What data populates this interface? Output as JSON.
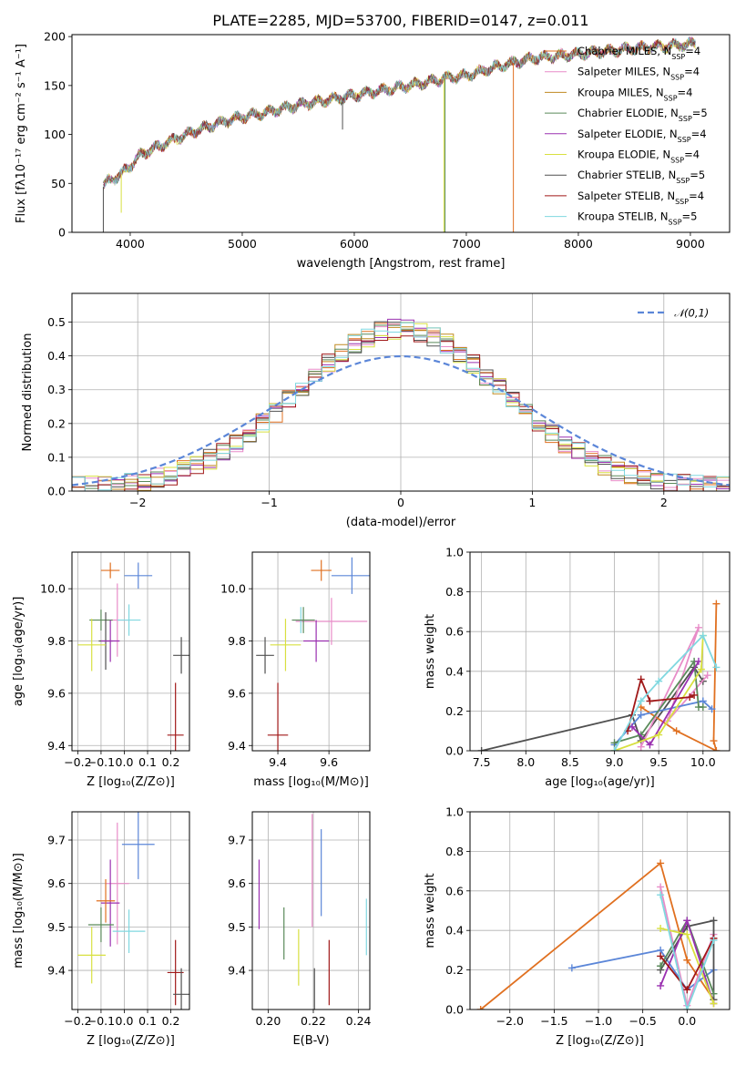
{
  "title": "PLATE=2285, MJD=53700, FIBERID=0147, z=0.011",
  "colors": {
    "Chabrier MILES": "#e07020",
    "Salpeter MILES": "#e88cc8",
    "Kroupa MILES": "#c08a20",
    "Chabrier ELODIE": "#5a8a5a",
    "Salpeter ELODIE": "#9a30b0",
    "Kroupa ELODIE": "#d8e040",
    "Chabrier STELIB": "#505050",
    "Salpeter STELIB": "#a01818",
    "Kroupa STELIB": "#80d8e0",
    "normal": "#5b86d8",
    "blue": "#5b86d8"
  },
  "legend_spectrum": [
    {
      "key": "Chabrier MILES",
      "label": "Chabrier MILES, N",
      "sub": "SSP",
      "n": "=4"
    },
    {
      "key": "Salpeter MILES",
      "label": "Salpeter MILES, N",
      "sub": "SSP",
      "n": "=4"
    },
    {
      "key": "Kroupa MILES",
      "label": "Kroupa MILES, N",
      "sub": "SSP",
      "n": "=4"
    },
    {
      "key": "Chabrier ELODIE",
      "label": "Chabrier ELODIE, N",
      "sub": "SSP",
      "n": "=5"
    },
    {
      "key": "Salpeter ELODIE",
      "label": "Salpeter ELODIE, N",
      "sub": "SSP",
      "n": "=4"
    },
    {
      "key": "Kroupa ELODIE",
      "label": "Kroupa ELODIE, N",
      "sub": "SSP",
      "n": "=4"
    },
    {
      "key": "Chabrier STELIB",
      "label": "Chabrier STELIB, N",
      "sub": "SSP",
      "n": "=5"
    },
    {
      "key": "Salpeter STELIB",
      "label": "Salpeter STELIB, N",
      "sub": "SSP",
      "n": "=4"
    },
    {
      "key": "Kroupa STELIB",
      "label": "Kroupa STELIB, N",
      "sub": "SSP",
      "n": "=5"
    }
  ],
  "chart_data": [
    {
      "id": "spectrum",
      "type": "line",
      "xlabel": "wavelength [Angstrom, rest frame]",
      "ylabel": "Flux [fλ10⁻¹⁷ erg cm⁻² s⁻¹ A⁻¹]",
      "xlim": [
        3480,
        9350
      ],
      "ylim": [
        0,
        202
      ],
      "xticks": [
        4000,
        5000,
        6000,
        7000,
        8000,
        9000
      ],
      "yticks": [
        0,
        50,
        100,
        150,
        200
      ],
      "continuum_x": [
        3750,
        3800,
        3900,
        4000,
        4100,
        4300,
        4500,
        4800,
        5000,
        5200,
        5500,
        5800,
        6000,
        6300,
        6500,
        6800,
        7000,
        7300,
        7600,
        8000,
        8500,
        9000,
        9050
      ],
      "continuum_y": [
        45,
        52,
        58,
        68,
        80,
        90,
        100,
        112,
        118,
        122,
        130,
        136,
        140,
        146,
        150,
        157,
        160,
        170,
        178,
        182,
        188,
        192,
        194
      ],
      "dips": [
        {
          "key": "Kroupa ELODIE",
          "x": 6800,
          "depth": 0
        },
        {
          "key": "Chabrier ELODIE",
          "x": 6810,
          "depth": 0
        },
        {
          "key": "Chabrier MILES",
          "x": 7420,
          "depth": 0
        },
        {
          "key": "Chabrier STELIB",
          "x": 3760,
          "depth": 0
        },
        {
          "key": "Kroupa ELODIE",
          "x": 3920,
          "depth": 20
        },
        {
          "key": "Chabrier STELIB",
          "x": 5895,
          "depth": 105
        }
      ]
    },
    {
      "id": "residuals",
      "type": "histogram",
      "xlabel": "(data-model)/error",
      "ylabel": "Normed distribution",
      "xlim": [
        -2.5,
        2.5
      ],
      "ylim": [
        0,
        0.585
      ],
      "xticks": [
        -2,
        -1,
        0,
        1,
        2
      ],
      "yticks": [
        0.0,
        0.1,
        0.2,
        0.3,
        0.4,
        0.5
      ],
      "legend": "𝒩(0,1)",
      "normal": {
        "mean": 0,
        "sigma": 1
      }
    },
    {
      "id": "age-vs-Z",
      "type": "errorbar",
      "xlabel": "Z [log₁₀(Z/Z⊙)]",
      "ylabel": "age  [log₁₀(age/yr)]",
      "xlim": [
        -0.225,
        0.28
      ],
      "ylim": [
        9.38,
        10.14
      ],
      "xticks": [
        -0.2,
        -0.1,
        0.0,
        0.1,
        0.2
      ],
      "xticklabels": [
        "−0.2",
        "−0.1",
        "0.0",
        "0.1",
        "0.2"
      ],
      "yticks": [
        9.4,
        9.6,
        9.8,
        10.0
      ],
      "points": [
        {
          "key": "Chabrier MILES",
          "x": -0.06,
          "y": 10.07,
          "xerr": 0.04,
          "yerr": 0.03
        },
        {
          "key": "blue",
          "x": 0.06,
          "y": 10.05,
          "xerr": 0.06,
          "yerr": 0.05
        },
        {
          "key": "Salpeter MILES",
          "x": -0.03,
          "y": 9.88,
          "xerr": 0.05,
          "yerr": 0.14
        },
        {
          "key": "Kroupa STELIB",
          "x": 0.02,
          "y": 9.88,
          "xerr": 0.05,
          "yerr": 0.06
        },
        {
          "key": "Chabrier ELODIE",
          "x": -0.1,
          "y": 9.88,
          "xerr": 0.05,
          "yerr": 0.04
        },
        {
          "key": "Chabrier STELIB",
          "x": -0.08,
          "y": 9.8,
          "xerr": 0.03,
          "yerr": 0.11
        },
        {
          "key": "Salpeter ELODIE",
          "x": -0.06,
          "y": 9.8,
          "xerr": 0.04,
          "yerr": 0.08
        },
        {
          "key": "Kroupa ELODIE",
          "x": -0.14,
          "y": 9.785,
          "xerr": 0.06,
          "yerr": 0.1
        },
        {
          "key": "Chabrier STELIB",
          "x": 0.245,
          "y": 9.745,
          "xerr": 0.035,
          "yerr": 0.07
        },
        {
          "key": "Salpeter STELIB",
          "x": 0.22,
          "y": 9.44,
          "xerr": 0.035,
          "yerr": 0.2
        }
      ]
    },
    {
      "id": "age-vs-mass",
      "type": "errorbar",
      "xlabel": "mass [log₁₀(M/M⊙)]",
      "ylabel": "",
      "xlim": [
        9.3,
        9.76
      ],
      "ylim": [
        9.38,
        10.14
      ],
      "xticks": [
        9.4,
        9.6
      ],
      "xticklabels": [
        "9.4",
        "9.6"
      ],
      "yticks": [
        9.4,
        9.6,
        9.8,
        10.0
      ],
      "points": [
        {
          "key": "Chabrier MILES",
          "x": 9.57,
          "y": 10.07,
          "xerr": 0.04,
          "yerr": 0.04
        },
        {
          "key": "blue",
          "x": 9.69,
          "y": 10.05,
          "xerr": 0.08,
          "yerr": 0.07
        },
        {
          "key": "Salpeter MILES",
          "x": 9.61,
          "y": 9.875,
          "xerr": 0.14,
          "yerr": 0.09
        },
        {
          "key": "Kroupa STELIB",
          "x": 9.49,
          "y": 9.88,
          "xerr": 0.03,
          "yerr": 0.05
        },
        {
          "key": "Chabrier ELODIE",
          "x": 9.5,
          "y": 9.88,
          "xerr": 0.045,
          "yerr": 0.05
        },
        {
          "key": "Salpeter ELODIE",
          "x": 9.55,
          "y": 9.8,
          "xerr": 0.05,
          "yerr": 0.08
        },
        {
          "key": "Kroupa ELODIE",
          "x": 9.43,
          "y": 9.785,
          "xerr": 0.06,
          "yerr": 0.1
        },
        {
          "key": "Chabrier STELIB",
          "x": 9.35,
          "y": 9.745,
          "xerr": 0.035,
          "yerr": 0.07
        },
        {
          "key": "Salpeter STELIB",
          "x": 9.4,
          "y": 9.44,
          "xerr": 0.04,
          "yerr": 0.2
        }
      ]
    },
    {
      "id": "weight-vs-age",
      "type": "line",
      "xlabel": "age  [log₁₀(age/yr)]",
      "ylabel": "mass weight",
      "xlim": [
        7.37,
        10.3
      ],
      "ylim": [
        0,
        1.0
      ],
      "xticks": [
        7.5,
        8.0,
        8.5,
        9.0,
        9.5,
        10.0
      ],
      "xticklabels": [
        "7.5",
        "8.0",
        "8.5",
        "9.0",
        "9.5",
        "10.0"
      ],
      "yticks": [
        0.0,
        0.2,
        0.4,
        0.6,
        0.8,
        1.0
      ],
      "yticklabels": [
        "0.0",
        "0.2",
        "0.4",
        "0.6",
        "0.8",
        "1.0"
      ],
      "series": [
        {
          "key": "Chabrier STELIB",
          "x": [
            7.5,
            9.2,
            9.3,
            9.9,
            10.0
          ],
          "y": [
            0.0,
            0.18,
            0.05,
            0.42,
            0.35
          ]
        },
        {
          "key": "Chabrier MILES",
          "x": [
            9.3,
            9.7,
            10.15,
            10.12,
            10.15
          ],
          "y": [
            0.22,
            0.1,
            0.0,
            0.05,
            0.74
          ]
        },
        {
          "key": "Salpeter MILES",
          "x": [
            9.3,
            9.95,
            9.6,
            10.05
          ],
          "y": [
            0.02,
            0.62,
            0.15,
            0.38
          ]
        },
        {
          "key": "blue",
          "x": [
            9.0,
            9.3,
            10.0,
            10.1
          ],
          "y": [
            0.03,
            0.18,
            0.25,
            0.21
          ]
        },
        {
          "key": "Chabrier ELODIE",
          "x": [
            9.0,
            9.3,
            9.9,
            9.95,
            10.0
          ],
          "y": [
            0.04,
            0.08,
            0.45,
            0.22,
            0.22
          ]
        },
        {
          "key": "Salpeter ELODIE",
          "x": [
            9.2,
            9.4,
            9.95
          ],
          "y": [
            0.12,
            0.03,
            0.45
          ]
        },
        {
          "key": "Kroupa ELODIE",
          "x": [
            9.0,
            9.5,
            9.98,
            10.0
          ],
          "y": [
            0.0,
            0.08,
            0.41,
            0.58
          ]
        },
        {
          "key": "Salpeter STELIB",
          "x": [
            9.15,
            9.3,
            9.4,
            9.85,
            9.9
          ],
          "y": [
            0.1,
            0.36,
            0.25,
            0.27,
            0.28
          ]
        },
        {
          "key": "Kroupa STELIB",
          "x": [
            9.0,
            9.3,
            9.5,
            10.0,
            10.15
          ],
          "y": [
            0.0,
            0.25,
            0.35,
            0.58,
            0.42
          ]
        }
      ]
    },
    {
      "id": "mass-vs-Z",
      "type": "errorbar",
      "xlabel": "Z [log₁₀(Z/Z⊙)]",
      "ylabel": "mass [log₁₀(M/M⊙)]",
      "xlim": [
        -0.225,
        0.28
      ],
      "ylim": [
        9.31,
        9.765
      ],
      "xticks": [
        -0.2,
        -0.1,
        0.0,
        0.1,
        0.2
      ],
      "xticklabels": [
        "−0.2",
        "−0.1",
        "0.0",
        "0.1",
        "0.2"
      ],
      "yticks": [
        9.4,
        9.5,
        9.6,
        9.7
      ],
      "points": [
        {
          "key": "blue",
          "x": 0.06,
          "y": 9.69,
          "xerr": 0.07,
          "yerr": 0.08
        },
        {
          "key": "Salpeter MILES",
          "x": -0.03,
          "y": 9.6,
          "xerr": 0.05,
          "yerr": 0.14
        },
        {
          "key": "Salpeter ELODIE",
          "x": -0.06,
          "y": 9.555,
          "xerr": 0.04,
          "yerr": 0.1
        },
        {
          "key": "Chabrier MILES",
          "x": -0.08,
          "y": 9.56,
          "xerr": 0.04,
          "yerr": 0.05
        },
        {
          "key": "Chabrier ELODIE",
          "x": -0.1,
          "y": 9.505,
          "xerr": 0.055,
          "yerr": 0.04
        },
        {
          "key": "Kroupa STELIB",
          "x": 0.02,
          "y": 9.49,
          "xerr": 0.07,
          "yerr": 0.05
        },
        {
          "key": "Kroupa ELODIE",
          "x": -0.14,
          "y": 9.435,
          "xerr": 0.06,
          "yerr": 0.065
        },
        {
          "key": "Salpeter STELIB",
          "x": 0.22,
          "y": 9.395,
          "xerr": 0.035,
          "yerr": 0.075
        },
        {
          "key": "Chabrier STELIB",
          "x": 0.245,
          "y": 9.345,
          "xerr": 0.035,
          "yerr": 0.06
        }
      ]
    },
    {
      "id": "mass-vs-EBV",
      "type": "errorbar",
      "xlabel": "E(B-V)",
      "ylabel": "",
      "xlim": [
        0.193,
        0.245
      ],
      "ylim": [
        9.31,
        9.765
      ],
      "xticks": [
        0.2,
        0.22,
        0.24
      ],
      "xticklabels": [
        "0.20",
        "0.22",
        "0.24"
      ],
      "yticks": [
        9.4,
        9.5,
        9.6,
        9.7
      ],
      "points": [
        {
          "key": "Salpeter ELODIE",
          "x": 0.196,
          "y": 9.575,
          "xerr": 0,
          "yerr": 0.08
        },
        {
          "key": "Chabrier ELODIE",
          "x": 0.207,
          "y": 9.485,
          "xerr": 0,
          "yerr": 0.06
        },
        {
          "key": "Kroupa ELODIE",
          "x": 0.2135,
          "y": 9.43,
          "xerr": 0,
          "yerr": 0.065
        },
        {
          "key": "Salpeter MILES",
          "x": 0.2195,
          "y": 9.63,
          "xerr": 0,
          "yerr": 0.13
        },
        {
          "key": "Chabrier STELIB",
          "x": 0.2205,
          "y": 9.345,
          "xerr": 0,
          "yerr": 0.06
        },
        {
          "key": "blue",
          "x": 0.2235,
          "y": 9.625,
          "xerr": 0,
          "yerr": 0.1
        },
        {
          "key": "Salpeter STELIB",
          "x": 0.227,
          "y": 9.395,
          "xerr": 0,
          "yerr": 0.075
        },
        {
          "key": "Kroupa STELIB",
          "x": 0.2435,
          "y": 9.5,
          "xerr": 0,
          "yerr": 0.065
        }
      ]
    },
    {
      "id": "weight-vs-Z",
      "type": "line",
      "xlabel": "Z [log₁₀(Z/Z⊙)]",
      "ylabel": "mass weight",
      "xlim": [
        -2.45,
        0.48
      ],
      "ylim": [
        0,
        1.0
      ],
      "xticks": [
        -2.0,
        -1.5,
        -1.0,
        -0.5,
        0.0
      ],
      "xticklabels": [
        "−2.0",
        "−1.5",
        "−1.0",
        "−0.5",
        "0.0"
      ],
      "yticks": [
        0.0,
        0.2,
        0.4,
        0.6,
        0.8,
        1.0
      ],
      "yticklabels": [
        "0.0",
        "0.2",
        "0.4",
        "0.6",
        "0.8",
        "1.0"
      ],
      "series": [
        {
          "key": "Chabrier MILES",
          "x": [
            -2.33,
            -0.3,
            0.0,
            0.3
          ],
          "y": [
            0.0,
            0.74,
            0.25,
            0.05
          ]
        },
        {
          "key": "blue",
          "x": [
            -1.3,
            -0.3,
            0.0,
            0.3
          ],
          "y": [
            0.21,
            0.3,
            0.1,
            0.2
          ]
        },
        {
          "key": "Salpeter MILES",
          "x": [
            -0.3,
            0.0,
            0.3
          ],
          "y": [
            0.62,
            0.02,
            0.38
          ]
        },
        {
          "key": "Chabrier STELIB",
          "x": [
            -0.3,
            0.0,
            0.3,
            0.3
          ],
          "y": [
            0.2,
            0.42,
            0.45,
            0.05
          ]
        },
        {
          "key": "Chabrier ELODIE",
          "x": [
            -0.3,
            0.0,
            0.3
          ],
          "y": [
            0.22,
            0.45,
            0.08
          ]
        },
        {
          "key": "Salpeter ELODIE",
          "x": [
            -0.3,
            0.0,
            0.3
          ],
          "y": [
            0.12,
            0.45,
            0.03
          ]
        },
        {
          "key": "Kroupa ELODIE",
          "x": [
            -0.3,
            0.0,
            0.3
          ],
          "y": [
            0.41,
            0.38,
            0.03
          ]
        },
        {
          "key": "Salpeter STELIB",
          "x": [
            -0.3,
            0.0,
            0.3
          ],
          "y": [
            0.27,
            0.1,
            0.36
          ]
        },
        {
          "key": "Kroupa STELIB",
          "x": [
            -0.3,
            0.0,
            0.3
          ],
          "y": [
            0.58,
            0.0,
            0.35
          ]
        }
      ]
    }
  ]
}
